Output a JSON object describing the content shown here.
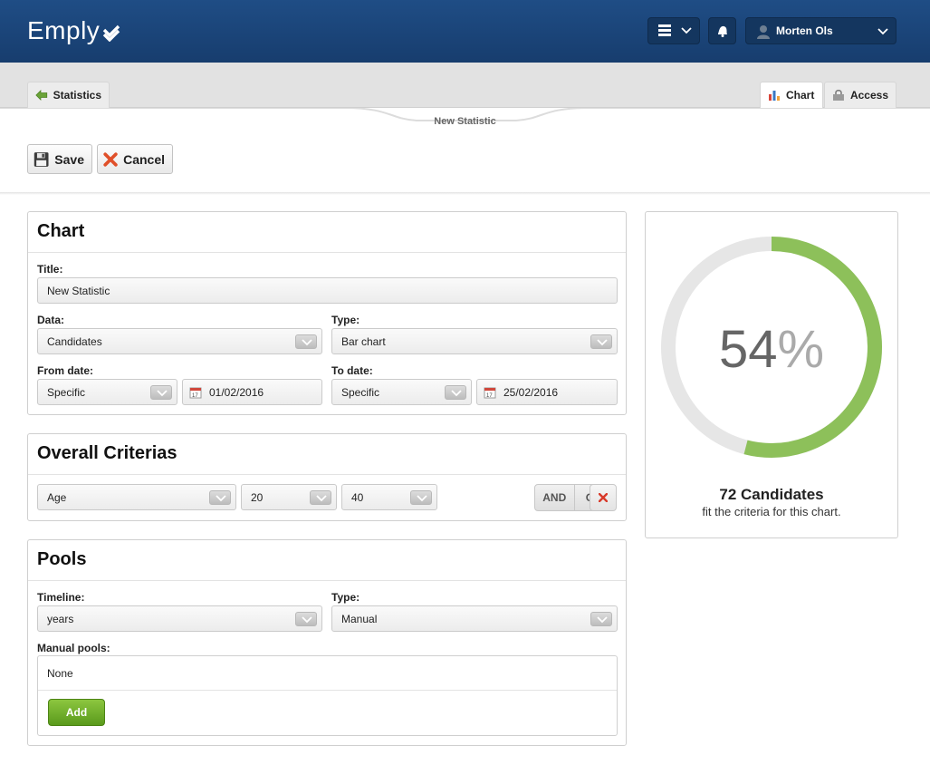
{
  "header": {
    "logo": "Emply",
    "user_name": "Morten Ols"
  },
  "tabs": {
    "back": "Statistics",
    "chart": "Chart",
    "access": "Access"
  },
  "page_subtitle": "New Statistic",
  "toolbar": {
    "save_label": "Save",
    "cancel_label": "Cancel"
  },
  "chart_panel": {
    "heading": "Chart",
    "title_label": "Title:",
    "title_value": "New Statistic",
    "data_label": "Data:",
    "data_value": "Candidates",
    "type_label": "Type:",
    "type_value": "Bar chart",
    "from_label": "From date:",
    "from_mode": "Specific",
    "from_date": "01/02/2016",
    "to_label": "To date:",
    "to_mode": "Specific",
    "to_date": "25/02/2016"
  },
  "criteria_panel": {
    "heading": "Overall Criterias",
    "field": "Age",
    "min": "20",
    "max": "40",
    "and_label": "AND",
    "or_label": "OR"
  },
  "pools_panel": {
    "heading": "Pools",
    "timeline_label": "Timeline:",
    "timeline_value": "years",
    "type_label": "Type:",
    "type_value": "Manual",
    "manual_label": "Manual pools:",
    "manual_value": "None",
    "add_label": "Add"
  },
  "summary": {
    "percent": 54,
    "percent_number": "54",
    "percent_symbol": "%",
    "count_text": "72 Candidates",
    "sub_text": "fit the criteria for this chart.",
    "fill_color": "#8dc05a",
    "track_color": "#e6e6e6"
  }
}
